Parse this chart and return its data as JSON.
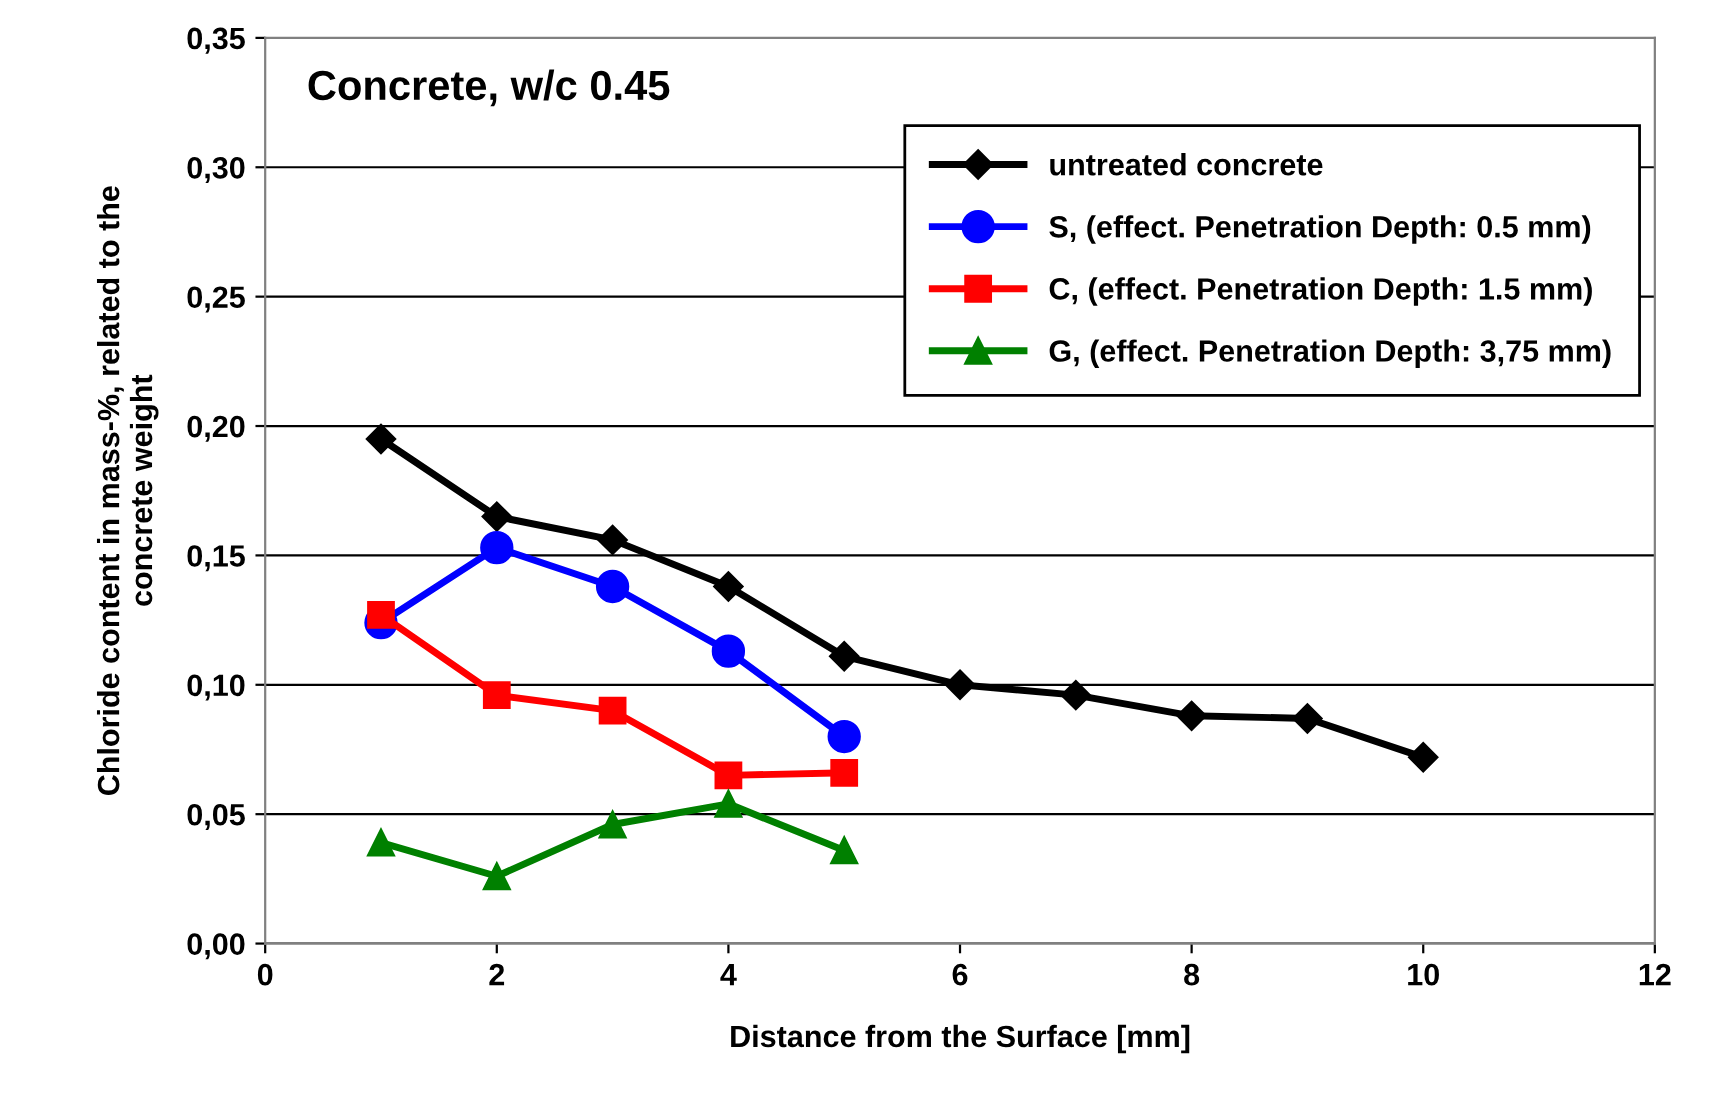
{
  "chart_data": {
    "type": "line",
    "title": "Concrete, w/c 0.45",
    "xlabel": "Distance from the Surface [mm]",
    "ylabel": "Chloride content in mass-%, related to the\nconcrete weight",
    "x": [
      1,
      2,
      3,
      4,
      5,
      6,
      7,
      8,
      9,
      10
    ],
    "series": [
      {
        "name": "untreated concrete",
        "color": "#000000",
        "marker": "diamond",
        "values": [
          0.195,
          0.165,
          0.156,
          0.138,
          0.111,
          0.1,
          0.096,
          0.088,
          0.087,
          0.072
        ]
      },
      {
        "name": "S, (effect. Penetration Depth: 0.5 mm)",
        "color": "#0000ff",
        "marker": "circle",
        "values": [
          0.124,
          0.153,
          0.138,
          0.113,
          0.08,
          null,
          null,
          null,
          null,
          null
        ]
      },
      {
        "name": "C, (effect. Penetration Depth: 1.5 mm)",
        "color": "#ff0000",
        "marker": "square",
        "values": [
          0.127,
          0.096,
          0.09,
          0.065,
          0.066,
          null,
          null,
          null,
          null,
          null
        ]
      },
      {
        "name": "G, (effect. Penetration Depth: 3,75 mm)",
        "color": "#008000",
        "marker": "triangle",
        "values": [
          0.039,
          0.026,
          0.046,
          0.054,
          0.036,
          null,
          null,
          null,
          null,
          null
        ]
      }
    ],
    "xlim": [
      0,
      12
    ],
    "xticks": [
      0,
      2,
      4,
      6,
      8,
      10,
      12
    ],
    "ylim": [
      0,
      0.35
    ],
    "yticks": [
      {
        "value": 0,
        "label": "0,00"
      },
      {
        "value": 0.05,
        "label": "0,05"
      },
      {
        "value": 0.1,
        "label": "0,10"
      },
      {
        "value": 0.15,
        "label": "0,15"
      },
      {
        "value": 0.2,
        "label": "0,20"
      },
      {
        "value": 0.25,
        "label": "0,25"
      },
      {
        "value": 0.3,
        "label": "0,30"
      },
      {
        "value": 0.35,
        "label": "0,35"
      }
    ],
    "grid": "y",
    "legend": "top right",
    "line_style": "solid"
  }
}
